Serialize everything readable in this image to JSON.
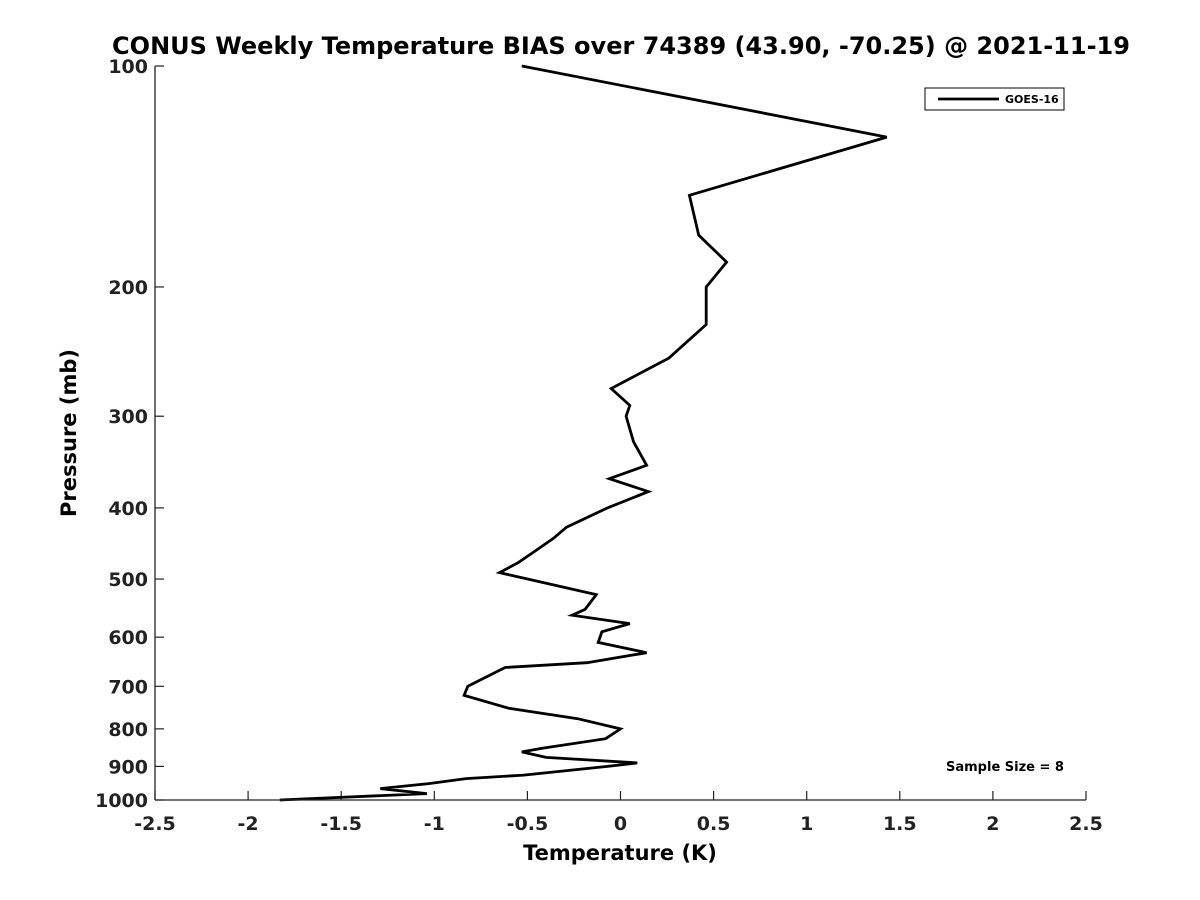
{
  "chart_data": {
    "type": "line",
    "title": "CONUS Weekly Temperature BIAS over 74389 (43.90, -70.25) @ 2021-11-19",
    "xlabel": "Temperature (K)",
    "ylabel": "Pressure (mb)",
    "xlim": [
      -2.5,
      2.5
    ],
    "ylim": [
      1000,
      100
    ],
    "yscale": "log",
    "grid": false,
    "legend_position": "top-right",
    "annotation": "Sample Size = 8",
    "x_ticks": [
      "-2.5",
      "-2",
      "-1.5",
      "-1",
      "-0.5",
      "0",
      "0.5",
      "1",
      "1.5",
      "2",
      "2.5"
    ],
    "y_ticks": [
      "100",
      "200",
      "300",
      "400",
      "500",
      "600",
      "700",
      "800",
      "900",
      "1000"
    ],
    "series": [
      {
        "name": "GOES-16",
        "color": "#000000",
        "points": [
          {
            "p": 100,
            "t": -0.53
          },
          {
            "p": 125,
            "t": 1.43
          },
          {
            "p": 150,
            "t": 0.37
          },
          {
            "p": 170,
            "t": 0.42
          },
          {
            "p": 185,
            "t": 0.57
          },
          {
            "p": 200,
            "t": 0.46
          },
          {
            "p": 225,
            "t": 0.46
          },
          {
            "p": 250,
            "t": 0.26
          },
          {
            "p": 275,
            "t": -0.05
          },
          {
            "p": 290,
            "t": 0.05
          },
          {
            "p": 300,
            "t": 0.03
          },
          {
            "p": 325,
            "t": 0.07
          },
          {
            "p": 350,
            "t": 0.14
          },
          {
            "p": 365,
            "t": -0.06
          },
          {
            "p": 380,
            "t": 0.15
          },
          {
            "p": 400,
            "t": -0.07
          },
          {
            "p": 425,
            "t": -0.29
          },
          {
            "p": 440,
            "t": -0.36
          },
          {
            "p": 460,
            "t": -0.47
          },
          {
            "p": 475,
            "t": -0.55
          },
          {
            "p": 490,
            "t": -0.65
          },
          {
            "p": 525,
            "t": -0.13
          },
          {
            "p": 550,
            "t": -0.19
          },
          {
            "p": 560,
            "t": -0.26
          },
          {
            "p": 575,
            "t": 0.05
          },
          {
            "p": 590,
            "t": -0.1
          },
          {
            "p": 610,
            "t": -0.12
          },
          {
            "p": 630,
            "t": 0.14
          },
          {
            "p": 650,
            "t": -0.18
          },
          {
            "p": 660,
            "t": -0.62
          },
          {
            "p": 700,
            "t": -0.82
          },
          {
            "p": 720,
            "t": -0.84
          },
          {
            "p": 750,
            "t": -0.6
          },
          {
            "p": 775,
            "t": -0.23
          },
          {
            "p": 800,
            "t": 0.0
          },
          {
            "p": 825,
            "t": -0.08
          },
          {
            "p": 850,
            "t": -0.42
          },
          {
            "p": 860,
            "t": -0.53
          },
          {
            "p": 875,
            "t": -0.4
          },
          {
            "p": 890,
            "t": 0.09
          },
          {
            "p": 900,
            "t": -0.07
          },
          {
            "p": 925,
            "t": -0.52
          },
          {
            "p": 935,
            "t": -0.83
          },
          {
            "p": 950,
            "t": -1.03
          },
          {
            "p": 965,
            "t": -1.29
          },
          {
            "p": 980,
            "t": -1.04
          },
          {
            "p": 1000,
            "t": -1.83
          }
        ]
      }
    ]
  }
}
